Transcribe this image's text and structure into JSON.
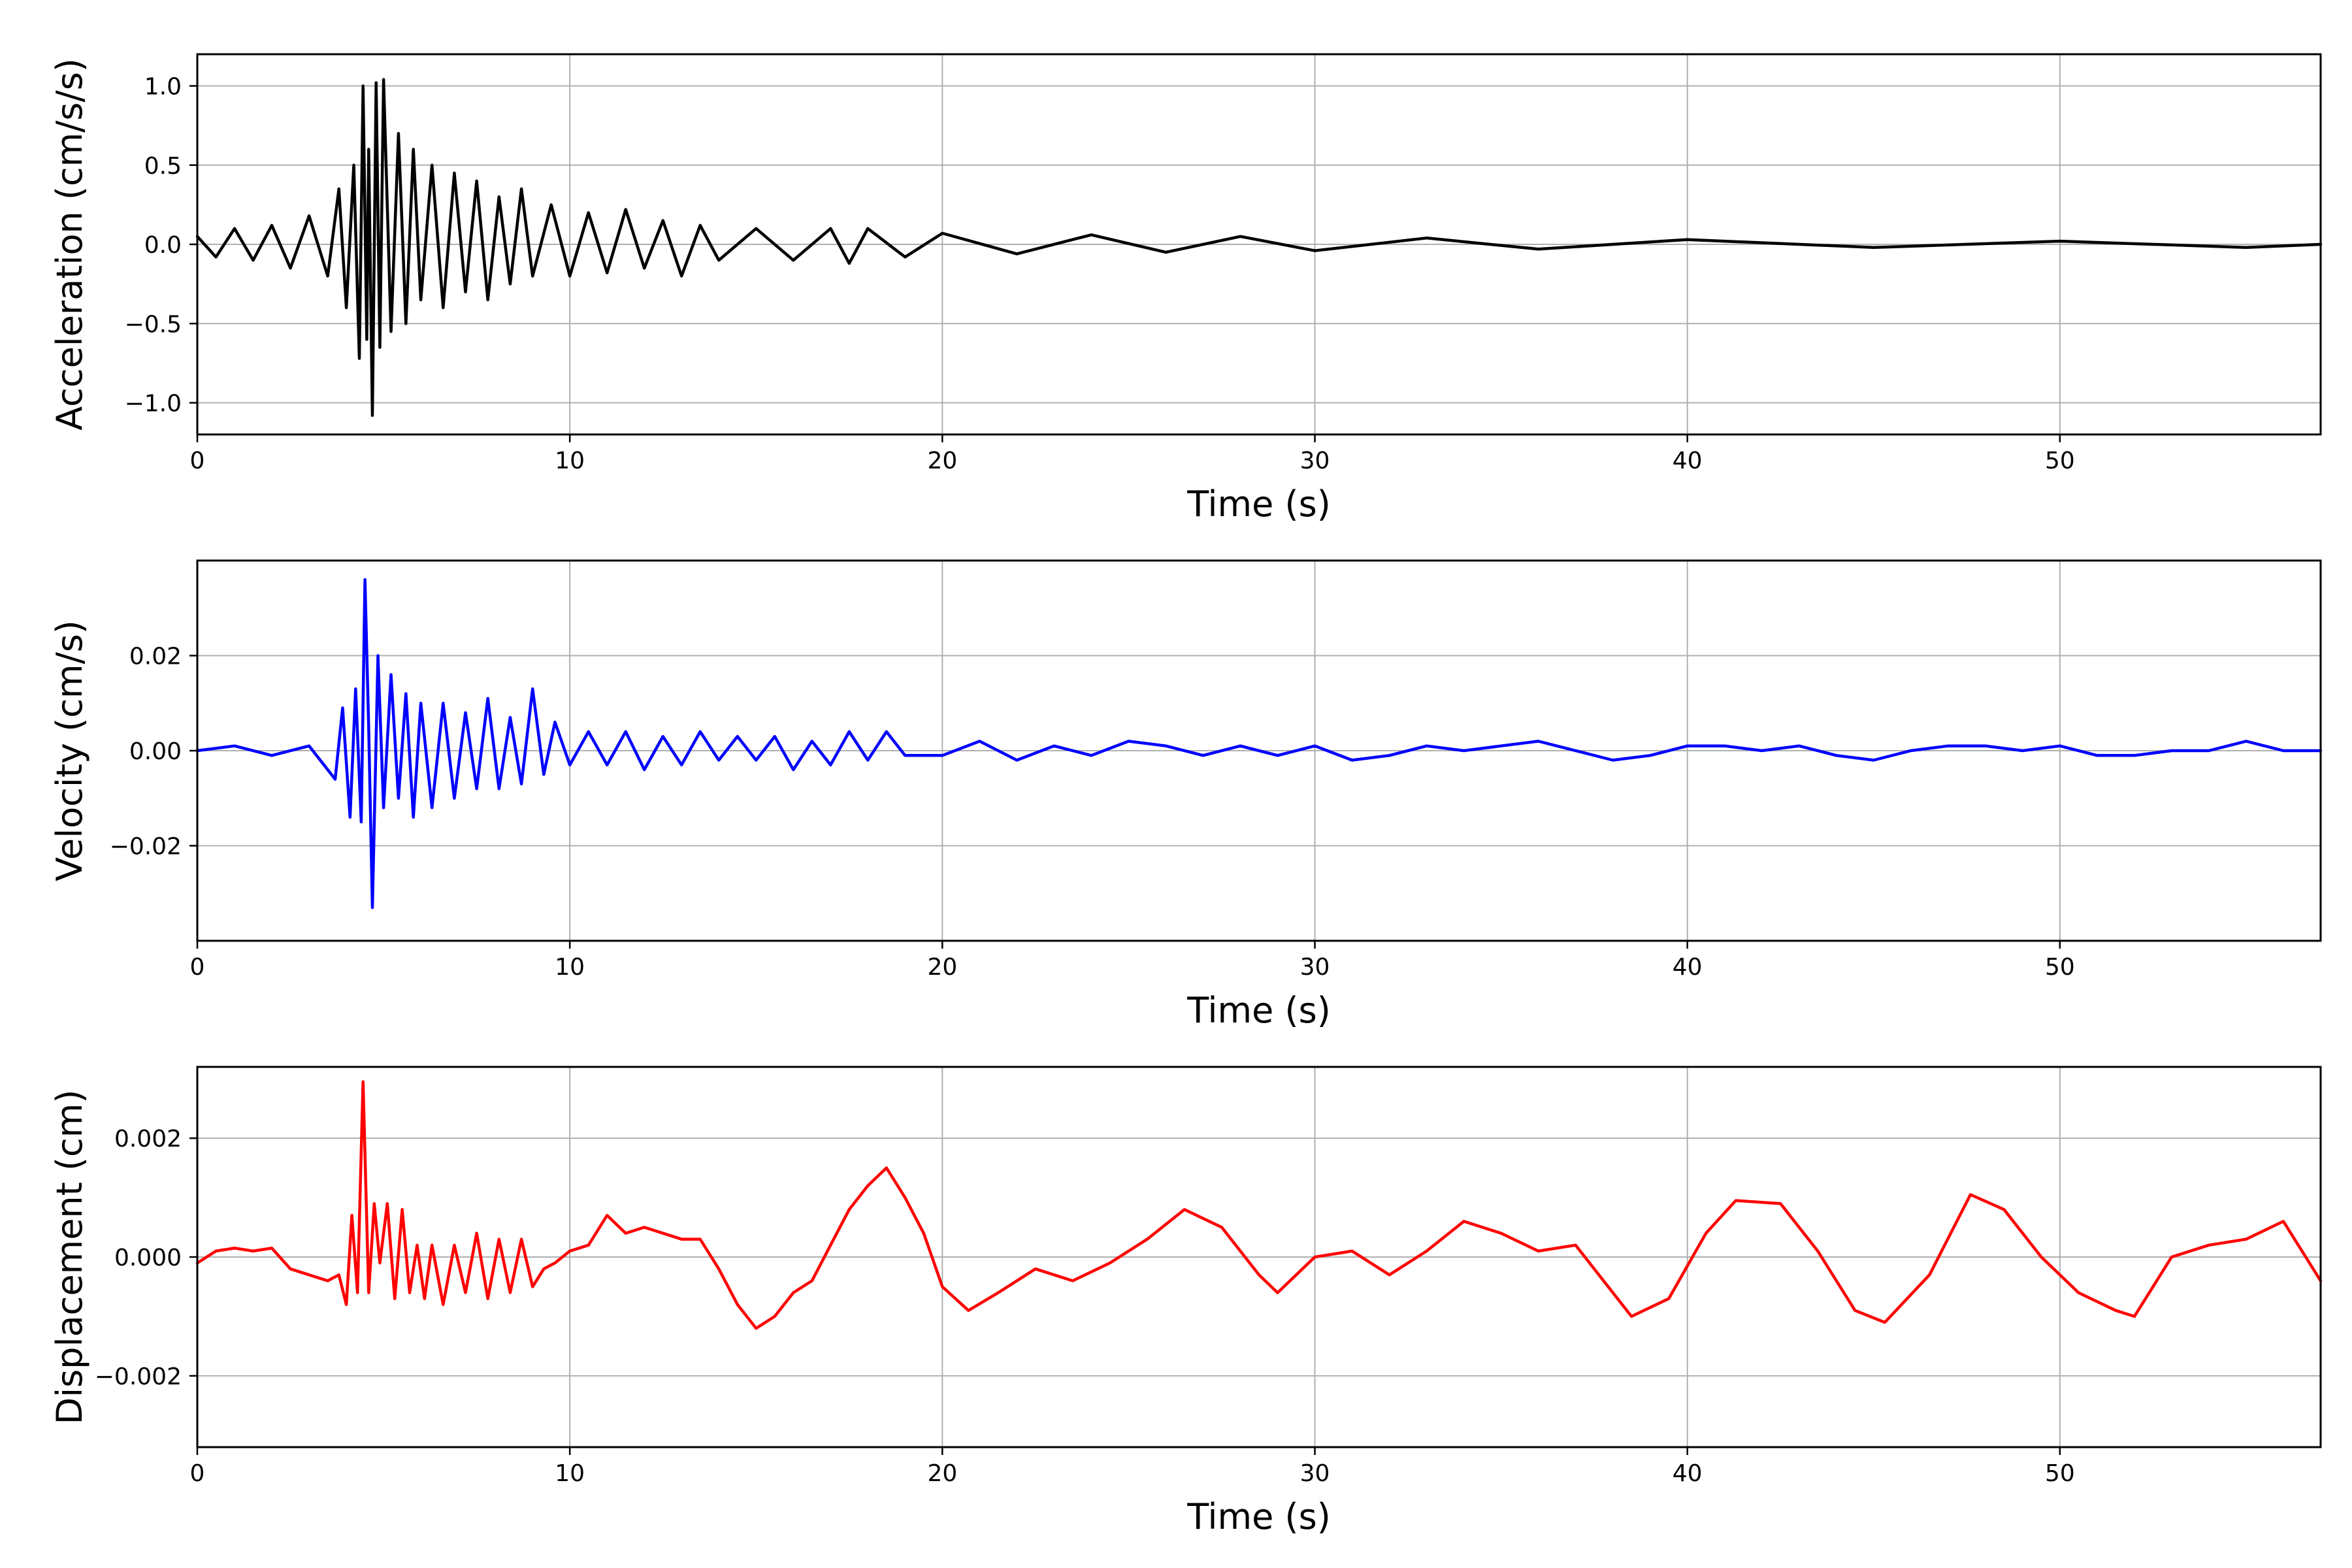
{
  "chart_data": [
    {
      "type": "line",
      "xlabel": "Time (s)",
      "ylabel": "Acceleration (cm/s/s)",
      "xlim": [
        0,
        57
      ],
      "ylim": [
        -1.2,
        1.2
      ],
      "xticks": [
        0,
        10,
        20,
        30,
        40,
        50
      ],
      "xtick_labels": [
        "0",
        "10",
        "20",
        "30",
        "40",
        "50"
      ],
      "yticks": [
        1.0,
        0.5,
        0.0,
        -0.5,
        -1.0
      ],
      "ytick_labels": [
        "1.0",
        "0.5",
        "0.0",
        "−0.5",
        "−1.0"
      ],
      "grid": true,
      "series": [
        {
          "color": "#000000",
          "x": [
            0,
            0.5,
            1,
            1.5,
            2,
            2.5,
            3,
            3.5,
            3.8,
            4.0,
            4.2,
            4.35,
            4.45,
            4.55,
            4.6,
            4.7,
            4.8,
            4.9,
            5.0,
            5.2,
            5.4,
            5.6,
            5.8,
            6.0,
            6.3,
            6.6,
            6.9,
            7.2,
            7.5,
            7.8,
            8.1,
            8.4,
            8.7,
            9.0,
            9.5,
            10,
            10.5,
            11,
            11.5,
            12,
            12.5,
            13,
            13.5,
            14,
            15,
            16,
            17,
            17.5,
            18,
            19,
            20,
            22,
            24,
            26,
            28,
            30,
            33,
            36,
            40,
            45,
            50,
            55,
            57
          ],
          "y": [
            0.05,
            -0.08,
            0.1,
            -0.1,
            0.12,
            -0.15,
            0.18,
            -0.2,
            0.35,
            -0.4,
            0.5,
            -0.72,
            1.0,
            -0.6,
            0.6,
            -1.08,
            1.02,
            -0.65,
            1.04,
            -0.55,
            0.7,
            -0.5,
            0.6,
            -0.35,
            0.5,
            -0.4,
            0.45,
            -0.3,
            0.4,
            -0.35,
            0.3,
            -0.25,
            0.35,
            -0.2,
            0.25,
            -0.2,
            0.2,
            -0.18,
            0.22,
            -0.15,
            0.15,
            -0.2,
            0.12,
            -0.1,
            0.1,
            -0.1,
            0.1,
            -0.12,
            0.1,
            -0.08,
            0.07,
            -0.06,
            0.06,
            -0.05,
            0.05,
            -0.04,
            0.04,
            -0.03,
            0.03,
            -0.02,
            0.02,
            -0.02,
            0.0
          ]
        }
      ]
    },
    {
      "type": "line",
      "xlabel": "Time (s)",
      "ylabel": "Velocity (cm/s)",
      "xlim": [
        0,
        57
      ],
      "ylim": [
        -0.04,
        0.04
      ],
      "xticks": [
        0,
        10,
        20,
        30,
        40,
        50
      ],
      "xtick_labels": [
        "0",
        "10",
        "20",
        "30",
        "40",
        "50"
      ],
      "yticks": [
        0.02,
        0.0,
        -0.02
      ],
      "ytick_labels": [
        "0.02",
        "0.00",
        "−0.02"
      ],
      "grid": true,
      "series": [
        {
          "color": "#0000ff",
          "x": [
            0,
            1,
            2,
            3,
            3.7,
            3.9,
            4.1,
            4.25,
            4.4,
            4.5,
            4.6,
            4.7,
            4.85,
            5.0,
            5.2,
            5.4,
            5.6,
            5.8,
            6.0,
            6.3,
            6.6,
            6.9,
            7.2,
            7.5,
            7.8,
            8.1,
            8.4,
            8.7,
            9.0,
            9.3,
            9.6,
            10,
            10.5,
            11,
            11.5,
            12,
            12.5,
            13,
            13.5,
            14,
            14.5,
            15,
            15.5,
            16,
            16.5,
            17,
            17.5,
            18,
            18.5,
            19,
            20,
            21,
            22,
            23,
            24,
            25,
            26,
            27,
            28,
            29,
            30,
            31,
            32,
            33,
            34,
            35,
            36,
            37,
            38,
            39,
            40,
            41,
            42,
            43,
            44,
            45,
            46,
            47,
            48,
            49,
            50,
            51,
            52,
            53,
            54,
            55,
            56,
            57
          ],
          "y": [
            0.0,
            0.001,
            -0.001,
            0.001,
            -0.006,
            0.009,
            -0.014,
            0.013,
            -0.015,
            0.036,
            0.005,
            -0.033,
            0.02,
            -0.012,
            0.016,
            -0.01,
            0.012,
            -0.014,
            0.01,
            -0.012,
            0.01,
            -0.01,
            0.008,
            -0.008,
            0.011,
            -0.008,
            0.007,
            -0.007,
            0.013,
            -0.005,
            0.006,
            -0.003,
            0.004,
            -0.003,
            0.004,
            -0.004,
            0.003,
            -0.003,
            0.004,
            -0.002,
            0.003,
            -0.002,
            0.003,
            -0.004,
            0.002,
            -0.003,
            0.004,
            -0.002,
            0.004,
            -0.001,
            -0.001,
            0.002,
            -0.002,
            0.001,
            -0.001,
            0.002,
            0.001,
            -0.001,
            0.001,
            -0.001,
            0.001,
            -0.002,
            -0.001,
            0.001,
            0.0,
            0.001,
            0.002,
            0.0,
            -0.002,
            -0.001,
            0.001,
            0.001,
            0.0,
            0.001,
            -0.001,
            -0.002,
            0.0,
            0.001,
            0.001,
            0.0,
            0.001,
            -0.001,
            -0.001,
            0.0,
            0.0,
            0.002,
            0.0,
            0.0
          ]
        }
      ]
    },
    {
      "type": "line",
      "xlabel": "Time (s)",
      "ylabel": "Displacement (cm)",
      "xlim": [
        0,
        57
      ],
      "ylim": [
        -0.0032,
        0.0032
      ],
      "xticks": [
        0,
        10,
        20,
        30,
        40,
        50
      ],
      "xtick_labels": [
        "0",
        "10",
        "20",
        "30",
        "40",
        "50"
      ],
      "yticks": [
        0.002,
        0.0,
        -0.002
      ],
      "ytick_labels": [
        "0.002",
        "0.000",
        "−0.002"
      ],
      "grid": true,
      "series": [
        {
          "color": "#ff0000",
          "x": [
            0,
            0.5,
            1,
            1.5,
            2,
            2.5,
            3,
            3.5,
            3.8,
            4.0,
            4.15,
            4.3,
            4.45,
            4.6,
            4.75,
            4.9,
            5.1,
            5.3,
            5.5,
            5.7,
            5.9,
            6.1,
            6.3,
            6.6,
            6.9,
            7.2,
            7.5,
            7.8,
            8.1,
            8.4,
            8.7,
            9.0,
            9.3,
            9.6,
            10,
            10.5,
            11,
            11.5,
            12,
            12.5,
            13,
            13.5,
            14,
            14.5,
            15,
            15.5,
            16,
            16.5,
            17,
            17.5,
            18,
            18.5,
            19,
            19.5,
            20,
            20.7,
            21.5,
            22.5,
            23.5,
            24.5,
            25.5,
            26.5,
            27.5,
            28.5,
            29.0,
            30,
            31,
            32,
            33,
            34,
            35,
            36,
            37,
            38,
            38.5,
            39.5,
            40.5,
            41.3,
            42.5,
            43.5,
            44.5,
            45.3,
            46.5,
            47.6,
            48.5,
            49.5,
            50.5,
            51.5,
            52.0,
            53,
            54,
            55,
            56,
            57
          ],
          "y": [
            -0.0001,
            0.0001,
            0.00015,
            0.0001,
            0.00015,
            -0.0002,
            -0.0003,
            -0.0004,
            -0.0003,
            -0.0008,
            0.0007,
            -0.0006,
            0.00295,
            -0.0006,
            0.0009,
            -0.0001,
            0.0009,
            -0.0007,
            0.0008,
            -0.0006,
            0.0002,
            -0.0007,
            0.0002,
            -0.0008,
            0.0002,
            -0.0006,
            0.0004,
            -0.0007,
            0.0003,
            -0.0006,
            0.0003,
            -0.0005,
            -0.0002,
            -0.0001,
            0.0001,
            0.0002,
            0.0007,
            0.0004,
            0.0005,
            0.0004,
            0.0003,
            0.0003,
            -0.0002,
            -0.0008,
            -0.0012,
            -0.001,
            -0.0006,
            -0.0004,
            0.0002,
            0.0008,
            0.0012,
            0.0015,
            0.001,
            0.0004,
            -0.0005,
            -0.0009,
            -0.0006,
            -0.0002,
            -0.0004,
            -0.0001,
            0.0003,
            0.0008,
            0.0005,
            -0.0003,
            -0.0006,
            0.0,
            0.0001,
            -0.0003,
            0.0001,
            0.0006,
            0.0004,
            0.0001,
            0.0002,
            -0.0006,
            -0.001,
            -0.0007,
            0.0004,
            0.00095,
            0.0009,
            0.0001,
            -0.0009,
            -0.0011,
            -0.0003,
            0.00105,
            0.0008,
            0.0,
            -0.0006,
            -0.0009,
            -0.001,
            0.0,
            0.0002,
            0.0003,
            0.0006,
            -0.0004
          ]
        }
      ]
    }
  ]
}
